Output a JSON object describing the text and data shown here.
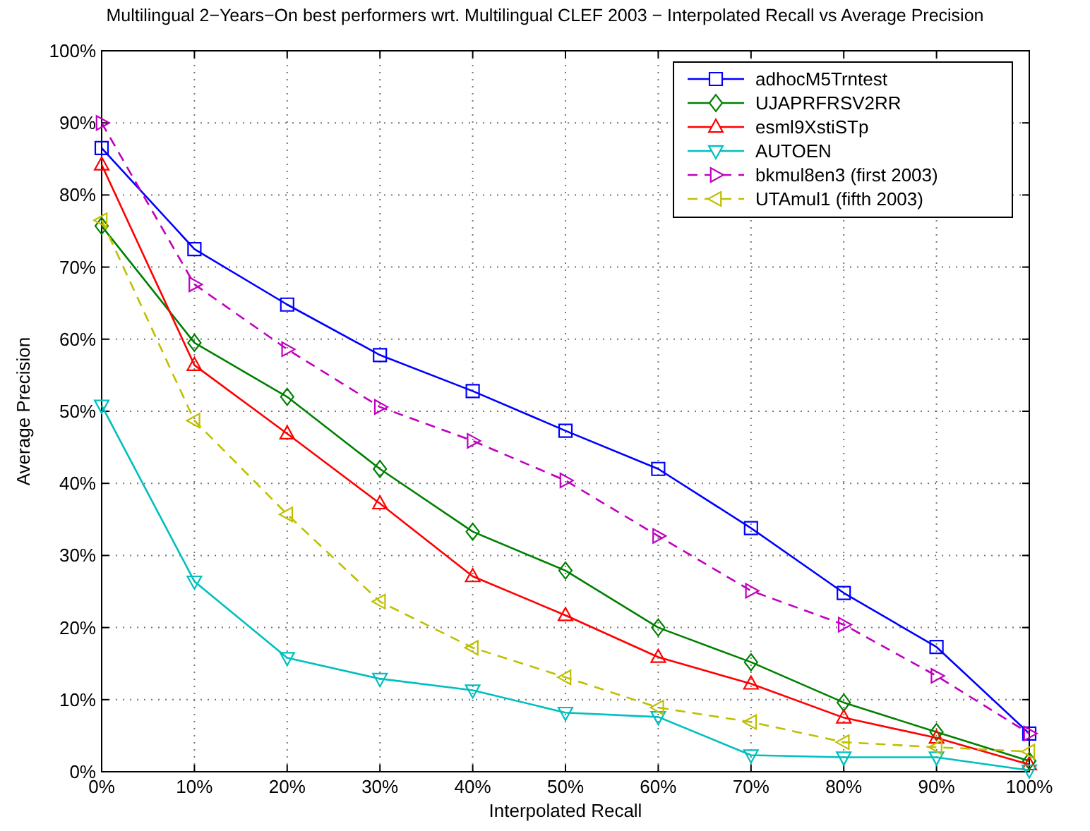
{
  "chart_data": {
    "type": "line",
    "title": "Multilingual 2−Years−On best performers wrt. Multilingual CLEF 2003 − Interpolated Recall vs Average Precision",
    "xlabel": "Interpolated Recall",
    "ylabel": "Average Precision",
    "x": [
      0,
      10,
      20,
      30,
      40,
      50,
      60,
      70,
      80,
      90,
      100
    ],
    "xlim": [
      0,
      100
    ],
    "ylim": [
      0,
      100
    ],
    "xticks": [
      {
        "value": 0,
        "label": "0%"
      },
      {
        "value": 10,
        "label": "10%"
      },
      {
        "value": 20,
        "label": "20%"
      },
      {
        "value": 30,
        "label": "30%"
      },
      {
        "value": 40,
        "label": "40%"
      },
      {
        "value": 50,
        "label": "50%"
      },
      {
        "value": 60,
        "label": "60%"
      },
      {
        "value": 70,
        "label": "70%"
      },
      {
        "value": 80,
        "label": "80%"
      },
      {
        "value": 90,
        "label": "90%"
      },
      {
        "value": 100,
        "label": "100%"
      }
    ],
    "yticks": [
      {
        "value": 0,
        "label": "0%"
      },
      {
        "value": 10,
        "label": "10%"
      },
      {
        "value": 20,
        "label": "20%"
      },
      {
        "value": 30,
        "label": "30%"
      },
      {
        "value": 40,
        "label": "40%"
      },
      {
        "value": 50,
        "label": "50%"
      },
      {
        "value": 60,
        "label": "60%"
      },
      {
        "value": 70,
        "label": "70%"
      },
      {
        "value": 80,
        "label": "80%"
      },
      {
        "value": 90,
        "label": "90%"
      },
      {
        "value": 100,
        "label": "100%"
      }
    ],
    "grid": true,
    "legend": "top right",
    "series": [
      {
        "name": "adhocM5Trntest",
        "color": "#0000ff",
        "marker": "square",
        "line_style": "solid",
        "values": [
          86.5,
          72.5,
          64.8,
          57.8,
          52.8,
          47.3,
          42.0,
          33.8,
          24.8,
          17.3,
          5.3
        ]
      },
      {
        "name": "UJAPRFRSV2RR",
        "color": "#008000",
        "marker": "diamond",
        "line_style": "solid",
        "values": [
          75.7,
          59.5,
          52.0,
          42.0,
          33.3,
          27.9,
          20.0,
          15.2,
          9.6,
          5.5,
          1.5
        ]
      },
      {
        "name": "esml9XstiSTp",
        "color": "#ff0000",
        "marker": "triangle",
        "line_style": "solid",
        "values": [
          84.2,
          56.4,
          46.9,
          37.2,
          27.1,
          21.7,
          15.9,
          12.2,
          7.5,
          4.7,
          1.0
        ]
      },
      {
        "name": "AUTOEN",
        "color": "#00bfbf",
        "marker": "triangle-down",
        "line_style": "solid",
        "values": [
          50.8,
          26.4,
          15.8,
          12.9,
          11.3,
          8.2,
          7.6,
          2.3,
          2.0,
          2.0,
          0.2
        ]
      },
      {
        "name": "bkmul8en3 (first 2003)",
        "color": "#bf00bf",
        "marker": "triangle-right",
        "line_style": "dashed",
        "values": [
          90.0,
          67.6,
          58.6,
          50.6,
          45.9,
          40.4,
          32.7,
          25.1,
          20.4,
          13.3,
          5.3
        ]
      },
      {
        "name": "UTAmul1 (fifth 2003)",
        "color": "#bfbf00",
        "marker": "triangle-left",
        "line_style": "dashed",
        "values": [
          76.5,
          48.7,
          35.7,
          23.6,
          17.2,
          13.1,
          8.9,
          6.9,
          4.1,
          3.4,
          2.8
        ]
      }
    ]
  }
}
